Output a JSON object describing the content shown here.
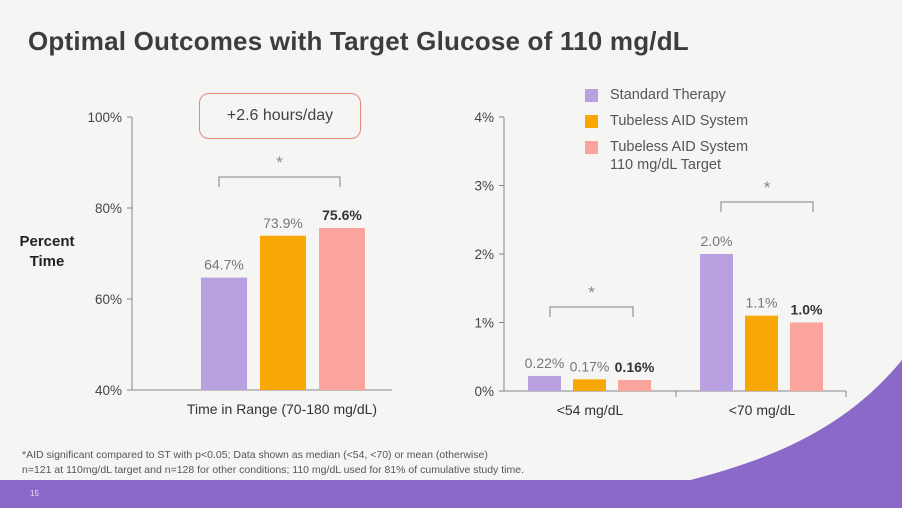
{
  "title": "Optimal Outcomes with Target Glucose of 110 mg/dL",
  "y_axis_label": "Percent\nTime",
  "callout": "+2.6 hours/day",
  "legend": [
    {
      "label": "Standard Therapy",
      "color": "#b9a0e0"
    },
    {
      "label": "Tubeless AID System",
      "color": "#f9a704"
    },
    {
      "label": "Tubeless AID System\n110 mg/dL Target",
      "color": "#fba49b"
    }
  ],
  "footnote": {
    "line1": "*AID significant compared to ST with p<0.05; Data shown as median (<54, <70) or mean (otherwise)",
    "line2": "n=121 at 110mg/dL target and n=128 for other conditions; 110 mg/dL used for 81% of cumulative study time."
  },
  "page_number": "15",
  "colors": {
    "standard": "#b9a0e0",
    "aid": "#f9a704",
    "aid110": "#fba49b",
    "band": "#8a69c9"
  },
  "chart_data": [
    {
      "type": "bar",
      "categories": [
        "Time in Range (70-180 mg/dL)"
      ],
      "series": [
        {
          "name": "Standard Therapy",
          "values": [
            64.7
          ],
          "labels": [
            "64.7%"
          ],
          "bold": false
        },
        {
          "name": "Tubeless AID System",
          "values": [
            73.9
          ],
          "labels": [
            "73.9%"
          ],
          "bold": false
        },
        {
          "name": "Tubeless AID System 110 mg/dL Target",
          "values": [
            75.6
          ],
          "labels": [
            "75.6%"
          ],
          "bold": true
        }
      ],
      "ylim": [
        40,
        100
      ],
      "yticks": [
        40,
        60,
        80,
        100
      ],
      "ytick_labels": [
        "40%",
        "60%",
        "80%",
        "100%"
      ],
      "ylabel": "Percent Time",
      "annotations": [
        "*"
      ]
    },
    {
      "type": "bar",
      "categories": [
        "<54 mg/dL",
        "<70 mg/dL"
      ],
      "series": [
        {
          "name": "Standard Therapy",
          "values": [
            0.22,
            2.0
          ],
          "labels": [
            "0.22%",
            "2.0%"
          ],
          "bold": false
        },
        {
          "name": "Tubeless AID System",
          "values": [
            0.17,
            1.1
          ],
          "labels": [
            "0.17%",
            "1.1%"
          ],
          "bold": false
        },
        {
          "name": "Tubeless AID System 110 mg/dL Target",
          "values": [
            0.16,
            1.0
          ],
          "labels": [
            "0.16%",
            "1.0%"
          ],
          "bold": true
        }
      ],
      "ylim": [
        0,
        4
      ],
      "yticks": [
        0,
        1,
        2,
        3,
        4
      ],
      "ytick_labels": [
        "0%",
        "1%",
        "2%",
        "3%",
        "4%"
      ],
      "annotations": [
        "*",
        "*"
      ]
    }
  ]
}
